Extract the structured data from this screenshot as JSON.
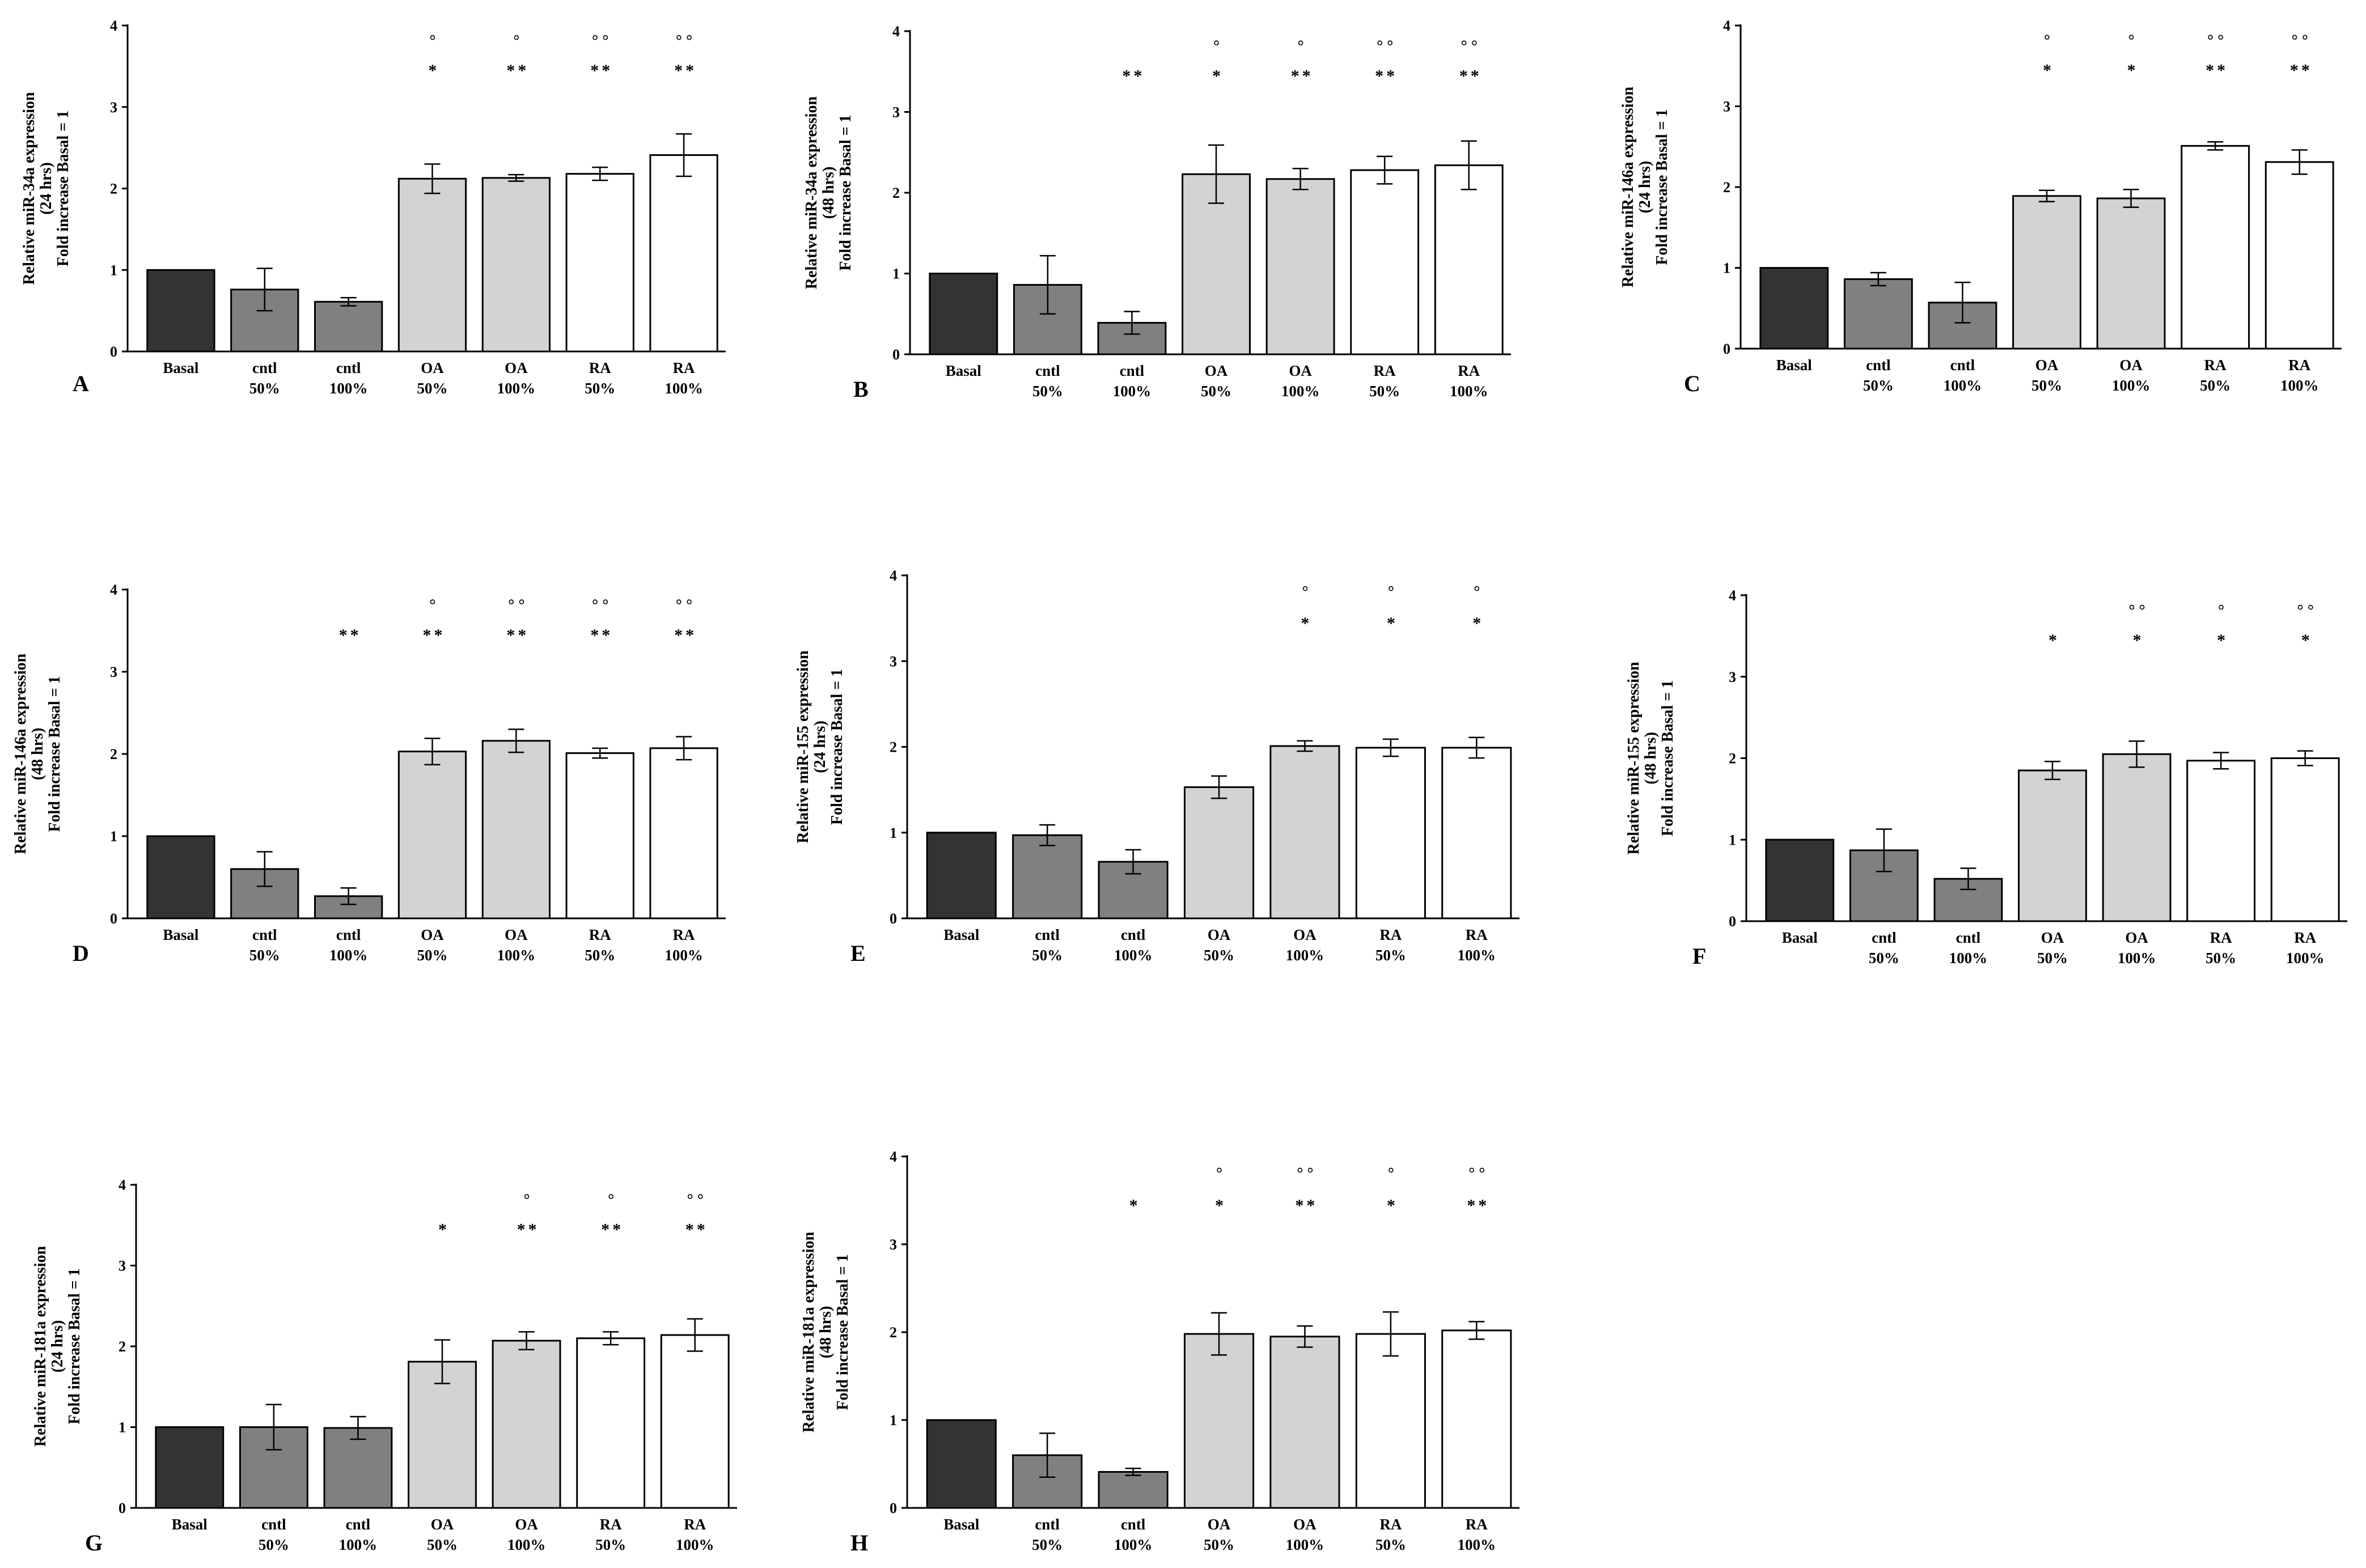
{
  "colors": {
    "basal": "#333333",
    "cntl": "#808080",
    "oa": "#d3d3d3",
    "ra": "#ffffff",
    "axis": "#000000"
  },
  "chart_data": [
    {
      "panel": "A",
      "type": "bar",
      "ylabel": [
        "Relative miR-34a expression",
        "(24 hrs)",
        "Fold increase Basal = 1"
      ],
      "ylim": [
        0,
        4
      ],
      "yticks": [
        "0",
        "1",
        "2",
        "3",
        "4"
      ],
      "categories": [
        [
          "Basal"
        ],
        [
          "cntl",
          "50%"
        ],
        [
          "cntl",
          "100%"
        ],
        [
          "OA",
          "50%"
        ],
        [
          "OA",
          "100%"
        ],
        [
          "RA",
          "50%"
        ],
        [
          "RA",
          "100%"
        ]
      ],
      "groups": [
        "basal",
        "cntl",
        "cntl",
        "oa",
        "oa",
        "ra",
        "ra"
      ],
      "values": [
        1.0,
        0.76,
        0.61,
        2.12,
        2.13,
        2.18,
        2.41
      ],
      "errors": [
        0,
        0.26,
        0.05,
        0.18,
        0.04,
        0.08,
        0.26
      ],
      "sig_star": [
        "",
        "",
        "",
        "*",
        "**",
        "**",
        "**"
      ],
      "sig_degree": [
        "",
        "",
        "",
        "°",
        "°",
        "°°",
        "°°"
      ]
    },
    {
      "panel": "B",
      "type": "bar",
      "ylabel": [
        "Relative miR-34a expression",
        "(48 hrs)",
        "Fold increase Basal = 1"
      ],
      "ylim": [
        0,
        4
      ],
      "yticks": [
        "0",
        "1",
        "2",
        "3",
        "4"
      ],
      "categories": [
        [
          "Basal"
        ],
        [
          "cntl",
          "50%"
        ],
        [
          "cntl",
          "100%"
        ],
        [
          "OA",
          "50%"
        ],
        [
          "OA",
          "100%"
        ],
        [
          "RA",
          "50%"
        ],
        [
          "RA",
          "100%"
        ]
      ],
      "groups": [
        "basal",
        "cntl",
        "cntl",
        "oa",
        "oa",
        "ra",
        "ra"
      ],
      "values": [
        1.0,
        0.86,
        0.39,
        2.23,
        2.17,
        2.28,
        2.34
      ],
      "errors": [
        0,
        0.36,
        0.14,
        0.36,
        0.13,
        0.17,
        0.3
      ],
      "sig_star": [
        "",
        "",
        "**",
        "*",
        "**",
        "**",
        "**"
      ],
      "sig_degree": [
        "",
        "",
        "",
        "°",
        "°",
        "°°",
        "°°"
      ]
    },
    {
      "panel": "C",
      "type": "bar",
      "ylabel": [
        "Relative miR-146a expression",
        "(24 hrs)",
        "Fold increase Basal = 1"
      ],
      "ylim": [
        0,
        4
      ],
      "yticks": [
        "0",
        "1",
        "2",
        "3",
        "4"
      ],
      "categories": [
        [
          "Basal"
        ],
        [
          "cntl",
          "50%"
        ],
        [
          "cntl",
          "100%"
        ],
        [
          "OA",
          "50%"
        ],
        [
          "OA",
          "100%"
        ],
        [
          "RA",
          "50%"
        ],
        [
          "RA",
          "100%"
        ]
      ],
      "groups": [
        "basal",
        "cntl",
        "cntl",
        "oa",
        "oa",
        "ra",
        "ra"
      ],
      "values": [
        1.0,
        0.86,
        0.57,
        1.89,
        1.86,
        2.51,
        2.31
      ],
      "errors": [
        0,
        0.08,
        0.25,
        0.07,
        0.11,
        0.05,
        0.15
      ],
      "sig_star": [
        "",
        "",
        "",
        "*",
        "*",
        "**",
        "**"
      ],
      "sig_degree": [
        "",
        "",
        "",
        "°",
        "°",
        "°°",
        "°°"
      ]
    },
    {
      "panel": "D",
      "type": "bar",
      "ylabel": [
        "Relative miR-146a expression",
        "(48 hrs)",
        "Fold increase Basal = 1"
      ],
      "ylim": [
        0,
        4
      ],
      "yticks": [
        "0",
        "1",
        "2",
        "3",
        "4"
      ],
      "categories": [
        [
          "Basal"
        ],
        [
          "cntl",
          "50%"
        ],
        [
          "cntl",
          "100%"
        ],
        [
          "OA",
          "50%"
        ],
        [
          "OA",
          "100%"
        ],
        [
          "RA",
          "50%"
        ],
        [
          "RA",
          "100%"
        ]
      ],
      "groups": [
        "basal",
        "cntl",
        "cntl",
        "oa",
        "oa",
        "ra",
        "ra"
      ],
      "values": [
        1.0,
        0.6,
        0.27,
        2.03,
        2.16,
        2.01,
        2.07
      ],
      "errors": [
        0,
        0.21,
        0.1,
        0.16,
        0.14,
        0.06,
        0.14
      ],
      "sig_star": [
        "",
        "",
        "**",
        "**",
        "**",
        "**",
        "**"
      ],
      "sig_degree": [
        "",
        "",
        "",
        "°",
        "°°",
        "°°",
        "°°"
      ]
    },
    {
      "panel": "E",
      "type": "bar",
      "ylabel": [
        "Relative miR-155 expression",
        "(24 hrs)",
        "Fold increase Basal = 1"
      ],
      "ylim": [
        0,
        4
      ],
      "yticks": [
        "0",
        "1",
        "2",
        "3",
        "4"
      ],
      "categories": [
        [
          "Basal"
        ],
        [
          "cntl",
          "50%"
        ],
        [
          "cntl",
          "100%"
        ],
        [
          "OA",
          "50%"
        ],
        [
          "OA",
          "100%"
        ],
        [
          "RA",
          "50%"
        ],
        [
          "RA",
          "100%"
        ]
      ],
      "groups": [
        "basal",
        "cntl",
        "cntl",
        "oa",
        "oa",
        "ra",
        "ra"
      ],
      "values": [
        1.0,
        0.97,
        0.66,
        1.53,
        2.01,
        1.99,
        1.99
      ],
      "errors": [
        0,
        0.12,
        0.14,
        0.13,
        0.06,
        0.1,
        0.12
      ],
      "sig_star": [
        "",
        "",
        "",
        "",
        "*",
        "*",
        "*"
      ],
      "sig_degree": [
        "",
        "",
        "",
        "",
        "°",
        "°",
        "°"
      ]
    },
    {
      "panel": "F",
      "type": "bar",
      "ylabel": [
        "Relative miR-155 expression",
        "(48 hrs)",
        "Fold increase Basal = 1"
      ],
      "ylim": [
        0,
        4
      ],
      "yticks": [
        "0",
        "1",
        "2",
        "3",
        "4"
      ],
      "categories": [
        [
          "Basal"
        ],
        [
          "cntl",
          "50%"
        ],
        [
          "cntl",
          "100%"
        ],
        [
          "OA",
          "50%"
        ],
        [
          "OA",
          "100%"
        ],
        [
          "RA",
          "50%"
        ],
        [
          "RA",
          "100%"
        ]
      ],
      "groups": [
        "basal",
        "cntl",
        "cntl",
        "oa",
        "oa",
        "ra",
        "ra"
      ],
      "values": [
        1.0,
        0.87,
        0.52,
        1.85,
        2.05,
        1.97,
        2.0
      ],
      "errors": [
        0,
        0.26,
        0.13,
        0.11,
        0.16,
        0.1,
        0.09
      ],
      "sig_star": [
        "",
        "",
        "",
        "*",
        "*",
        "*",
        "*"
      ],
      "sig_degree": [
        "",
        "",
        "",
        "",
        "°°",
        "°",
        "°°"
      ]
    },
    {
      "panel": "G",
      "type": "bar",
      "ylabel": [
        "Relative miR-181a expression",
        "(24 hrs)",
        "Fold increase Basal = 1"
      ],
      "ylim": [
        0,
        4
      ],
      "yticks": [
        "0",
        "1",
        "2",
        "3",
        "4"
      ],
      "categories": [
        [
          "Basal"
        ],
        [
          "cntl",
          "50%"
        ],
        [
          "cntl",
          "100%"
        ],
        [
          "OA",
          "50%"
        ],
        [
          "OA",
          "100%"
        ],
        [
          "RA",
          "50%"
        ],
        [
          "RA",
          "100%"
        ]
      ],
      "groups": [
        "basal",
        "cntl",
        "cntl",
        "oa",
        "oa",
        "ra",
        "ra"
      ],
      "values": [
        1.0,
        1.0,
        0.99,
        1.81,
        2.07,
        2.1,
        2.14
      ],
      "errors": [
        0,
        0.28,
        0.14,
        0.27,
        0.11,
        0.08,
        0.2
      ],
      "sig_star": [
        "",
        "",
        "",
        "*",
        "**",
        "**",
        "**"
      ],
      "sig_degree": [
        "",
        "",
        "",
        "",
        "°",
        "°",
        "°°"
      ]
    },
    {
      "panel": "H",
      "type": "bar",
      "ylabel": [
        "Relative miR-181a expression",
        "(48 hrs)",
        "Fold increase Basal = 1"
      ],
      "ylim": [
        0,
        4
      ],
      "yticks": [
        "0",
        "1",
        "2",
        "3",
        "4"
      ],
      "categories": [
        [
          "Basal"
        ],
        [
          "cntl",
          "50%"
        ],
        [
          "cntl",
          "100%"
        ],
        [
          "OA",
          "50%"
        ],
        [
          "OA",
          "100%"
        ],
        [
          "RA",
          "50%"
        ],
        [
          "RA",
          "100%"
        ]
      ],
      "groups": [
        "basal",
        "cntl",
        "cntl",
        "oa",
        "oa",
        "ra",
        "ra"
      ],
      "values": [
        1.0,
        0.6,
        0.41,
        1.98,
        1.95,
        1.98,
        2.02
      ],
      "errors": [
        0,
        0.25,
        0.04,
        0.24,
        0.12,
        0.25,
        0.1
      ],
      "sig_star": [
        "",
        "",
        "*",
        "*",
        "**",
        "*",
        "**"
      ],
      "sig_degree": [
        "",
        "",
        "",
        "°",
        "°°",
        "°",
        "°°"
      ]
    }
  ]
}
